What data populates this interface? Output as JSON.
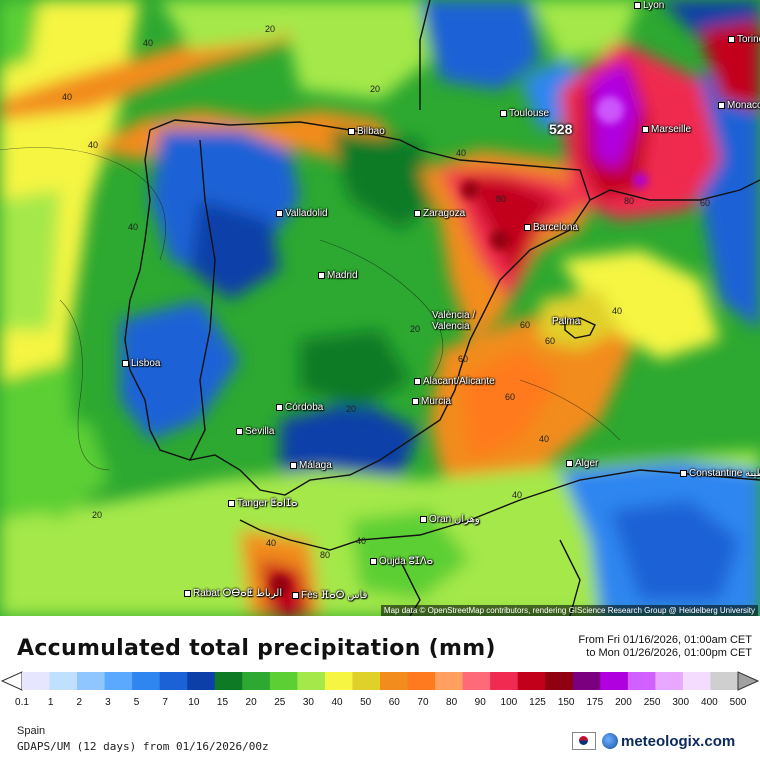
{
  "title": "Accumulated total precipitation (mm)",
  "range_from": "From Fri 01/16/2026, 01:00am CET",
  "range_to": "to Mon 01/26/2026, 01:00pm CET",
  "region": "Spain",
  "model": "GDAPS/UM (12 days) from 01/16/2026/00z",
  "brand": "meteologix.com",
  "attribution": "Map data © OpenStreetMap contributors, rendering GIScience Research Group @ Heidelberg University",
  "max_badge": "528",
  "cities": [
    {
      "name": "Lyon"
    },
    {
      "name": "Torino"
    },
    {
      "name": "Monaco"
    },
    {
      "name": "Toulouse"
    },
    {
      "name": "Marseille"
    },
    {
      "name": "Bilbao"
    },
    {
      "name": "Valladolid"
    },
    {
      "name": "Zaragoza"
    },
    {
      "name": "Barcelona"
    },
    {
      "name": "Madrid"
    },
    {
      "name": "València / Valencia"
    },
    {
      "name": "Palma"
    },
    {
      "name": "Lisboa"
    },
    {
      "name": "Alacant/Alicante"
    },
    {
      "name": "Murcia"
    },
    {
      "name": "Córdoba"
    },
    {
      "name": "Sevilla"
    },
    {
      "name": "Málaga"
    },
    {
      "name": "Tanger ⵟⴰⵏⵊⴰ"
    },
    {
      "name": "Alger"
    },
    {
      "name": "Constantine قسنطينة"
    },
    {
      "name": "Oran وهران"
    },
    {
      "name": "Oujda ⵓⵊⴷⴰ"
    },
    {
      "name": "Rabat ⵔⴱⴰⵟ الرباط"
    },
    {
      "name": "Fès ⴼⴰⵙ فاس"
    }
  ],
  "legend": {
    "ticks": [
      "0.1",
      "1",
      "2",
      "3",
      "5",
      "7",
      "10",
      "15",
      "20",
      "25",
      "30",
      "40",
      "50",
      "60",
      "70",
      "80",
      "90",
      "100",
      "125",
      "150",
      "175",
      "200",
      "250",
      "300",
      "400",
      "500"
    ],
    "colors": [
      "#e6e6ff",
      "#bfe0ff",
      "#8fc6ff",
      "#5aa8ff",
      "#2f86f0",
      "#1a62d6",
      "#0d3fa8",
      "#0e7a25",
      "#2da830",
      "#5ccf35",
      "#a4e84a",
      "#f5f542",
      "#e0d02a",
      "#f28c1c",
      "#ff7a1f",
      "#ffa060",
      "#ff6a78",
      "#f02a50",
      "#c2001a",
      "#900010",
      "#7a0080",
      "#b000e0",
      "#d060ff",
      "#e8a8ff",
      "#f4dcff",
      "#cfcfcf"
    ]
  }
}
